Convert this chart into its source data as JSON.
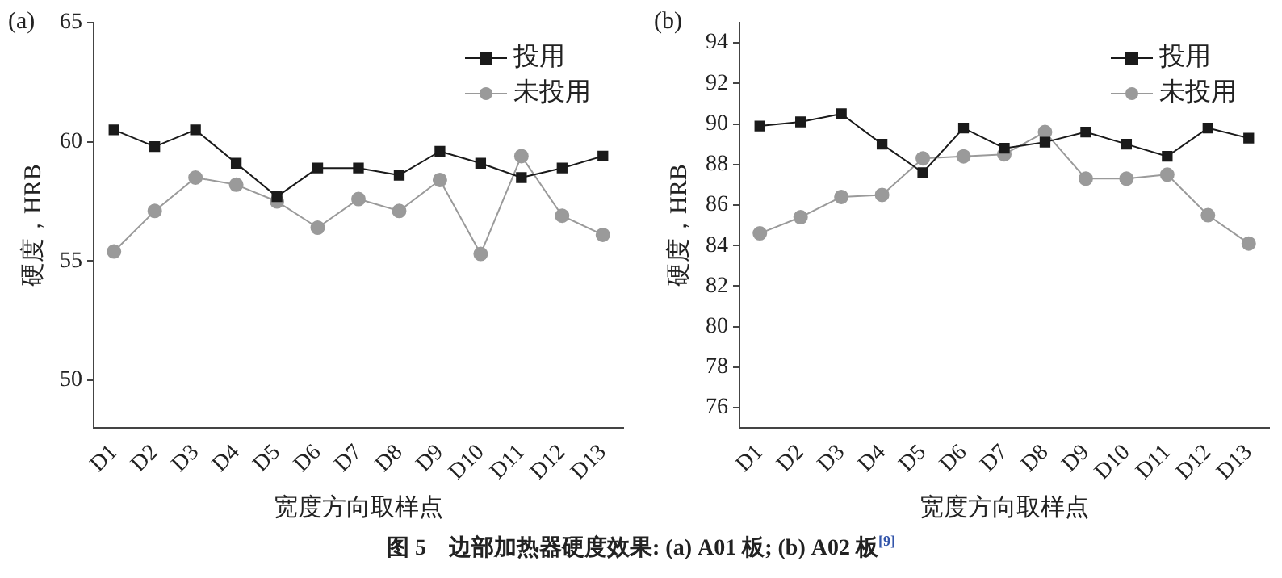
{
  "chart_data": [
    {
      "type": "line",
      "title": "(a)",
      "xlabel": "宽度方向取样点",
      "ylabel": "硬度，HRB",
      "categories": [
        "D1",
        "D2",
        "D3",
        "D4",
        "D5",
        "D6",
        "D7",
        "D8",
        "D9",
        "D10",
        "D11",
        "D12",
        "D13"
      ],
      "series": [
        {
          "name": "投用",
          "color": "#1a1a1a",
          "marker": "square",
          "values": [
            60.5,
            59.8,
            60.5,
            59.1,
            57.7,
            58.9,
            58.9,
            58.6,
            59.6,
            59.1,
            58.5,
            58.9,
            59.4
          ]
        },
        {
          "name": "未投用",
          "color": "#9a9a9a",
          "marker": "circle",
          "values": [
            55.4,
            57.1,
            58.5,
            58.2,
            57.5,
            56.4,
            57.6,
            57.1,
            58.4,
            55.3,
            59.4,
            56.9,
            56.1
          ]
        }
      ],
      "ylim": [
        48,
        65
      ],
      "yticks": [
        50,
        55,
        60,
        65
      ],
      "grid": false,
      "legend": "top right",
      "annotations": [
        "图 5　边部加热器硬度效果: (a) A01 板; (b) A02 板$^{[9]}$"
      ]
    },
    {
      "type": "line",
      "title": "(b)",
      "xlabel": "宽度方向取样点",
      "ylabel": "硬度，HRB",
      "categories": [
        "D1",
        "D2",
        "D3",
        "D4",
        "D5",
        "D6",
        "D7",
        "D8",
        "D9",
        "D10",
        "D11",
        "D12",
        "D13"
      ],
      "series": [
        {
          "name": "投用",
          "color": "#1a1a1a",
          "marker": "square",
          "values": [
            89.9,
            90.1,
            90.5,
            89.0,
            87.6,
            89.8,
            88.8,
            89.1,
            89.6,
            89.0,
            88.4,
            89.8,
            89.3
          ]
        },
        {
          "name": "未投用",
          "color": "#9a9a9a",
          "marker": "circle",
          "values": [
            84.6,
            85.4,
            86.4,
            86.5,
            88.3,
            88.4,
            88.5,
            89.6,
            87.3,
            87.3,
            87.5,
            85.5,
            84.1
          ]
        }
      ],
      "ylim": [
        75,
        95
      ],
      "yticks": [
        76,
        78,
        80,
        82,
        84,
        86,
        88,
        90,
        92,
        94
      ],
      "grid": false,
      "legend": "top right"
    }
  ]
}
